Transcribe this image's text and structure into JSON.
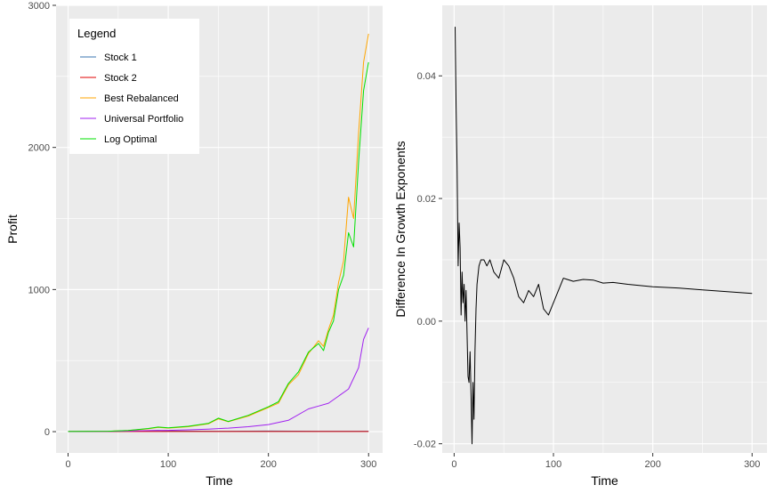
{
  "colors": {
    "panel_bg": "#ebebeb",
    "grid_major": "#ffffff",
    "stock1": "#3a75b0",
    "stock2": "#e00000",
    "best_rebalanced": "#ffa500",
    "universal_portfolio": "#a020f0",
    "log_optimal": "#00e000",
    "difference": "#000000"
  },
  "chart_data": [
    {
      "type": "line",
      "xlabel": "Time",
      "ylabel": "Profit",
      "xlim": [
        -12,
        314
      ],
      "ylim": [
        -150,
        3000
      ],
      "x_ticks": [
        0,
        100,
        200,
        300
      ],
      "y_ticks": [
        0,
        1000,
        2000,
        3000
      ],
      "x_tick_labels": [
        "0",
        "100",
        "200",
        "300"
      ],
      "y_tick_labels": [
        "0",
        "1000",
        "2000",
        "3000"
      ],
      "grid": true,
      "legend": {
        "title": "Legend",
        "position": "top-left",
        "entries": [
          "Stock 1",
          "Stock 2",
          "Best Rebalanced",
          "Universal Portfolio",
          "Log Optimal"
        ]
      },
      "series": [
        {
          "name": "Stock 1",
          "color": "#3a75b0",
          "x": [
            0,
            50,
            90,
            100,
            150,
            200,
            250,
            300
          ],
          "y": [
            1,
            2,
            8,
            4,
            3,
            4,
            3,
            3
          ]
        },
        {
          "name": "Stock 2",
          "color": "#e00000",
          "x": [
            0,
            50,
            100,
            150,
            200,
            250,
            300
          ],
          "y": [
            1,
            1,
            1,
            1,
            1,
            1,
            1
          ]
        },
        {
          "name": "Best Rebalanced",
          "color": "#ffa500",
          "x": [
            0,
            40,
            60,
            80,
            90,
            100,
            120,
            140,
            150,
            160,
            180,
            200,
            210,
            220,
            230,
            240,
            250,
            255,
            260,
            265,
            270,
            275,
            280,
            285,
            290,
            295,
            300
          ],
          "y": [
            1,
            3,
            8,
            20,
            30,
            25,
            35,
            55,
            90,
            70,
            110,
            170,
            200,
            330,
            400,
            550,
            640,
            600,
            720,
            820,
            1050,
            1200,
            1650,
            1500,
            2100,
            2600,
            2800
          ]
        },
        {
          "name": "Universal Portfolio",
          "color": "#a020f0",
          "x": [
            0,
            40,
            60,
            80,
            100,
            120,
            140,
            160,
            180,
            200,
            220,
            240,
            250,
            260,
            270,
            280,
            290,
            295,
            300
          ],
          "y": [
            1,
            2,
            4,
            7,
            9,
            13,
            18,
            25,
            35,
            50,
            80,
            160,
            180,
            200,
            250,
            300,
            450,
            650,
            730
          ]
        },
        {
          "name": "Log Optimal",
          "color": "#00e000",
          "x": [
            0,
            40,
            60,
            80,
            90,
            100,
            120,
            140,
            150,
            160,
            180,
            200,
            210,
            220,
            230,
            240,
            250,
            255,
            260,
            265,
            270,
            275,
            280,
            285,
            290,
            295,
            300
          ],
          "y": [
            1,
            3,
            8,
            22,
            32,
            27,
            38,
            58,
            95,
            72,
            115,
            175,
            210,
            340,
            420,
            560,
            620,
            570,
            700,
            780,
            1000,
            1100,
            1400,
            1300,
            1900,
            2400,
            2600
          ]
        }
      ]
    },
    {
      "type": "line",
      "xlabel": "Time",
      "ylabel": "Difference In Growth Exponents",
      "xlim": [
        -12,
        315
      ],
      "ylim": [
        -0.0215,
        0.0515
      ],
      "x_ticks": [
        0,
        100,
        200,
        300
      ],
      "y_ticks": [
        -0.02,
        0,
        0.02,
        0.04
      ],
      "x_tick_labels": [
        "0",
        "100",
        "200",
        "300"
      ],
      "y_tick_labels": [
        "-0.02",
        "0.00",
        "0.02",
        "0.04"
      ],
      "grid": true,
      "series": [
        {
          "color": "#000000",
          "x": [
            1,
            2,
            3,
            4,
            5,
            6,
            7,
            8,
            9,
            10,
            11,
            12,
            13,
            14,
            15,
            16,
            17,
            18,
            19,
            20,
            21,
            22,
            23,
            25,
            27,
            30,
            33,
            36,
            40,
            45,
            50,
            55,
            60,
            65,
            70,
            75,
            80,
            85,
            90,
            95,
            100,
            110,
            120,
            130,
            140,
            150,
            160,
            175,
            200,
            225,
            250,
            275,
            300
          ],
          "y": [
            0.048,
            0.035,
            0.025,
            0.009,
            0.016,
            0.012,
            0.001,
            0.008,
            0.003,
            0.006,
            0.0,
            0.005,
            -0.002,
            -0.009,
            -0.01,
            -0.005,
            -0.012,
            -0.02,
            -0.01,
            -0.016,
            -0.005,
            0.002,
            0.006,
            0.009,
            0.01,
            0.01,
            0.009,
            0.01,
            0.008,
            0.007,
            0.01,
            0.009,
            0.007,
            0.004,
            0.003,
            0.005,
            0.004,
            0.006,
            0.002,
            0.001,
            0.003,
            0.007,
            0.0065,
            0.0068,
            0.0067,
            0.0062,
            0.0063,
            0.006,
            0.0056,
            0.0054,
            0.0051,
            0.0048,
            0.0045
          ]
        }
      ]
    }
  ]
}
